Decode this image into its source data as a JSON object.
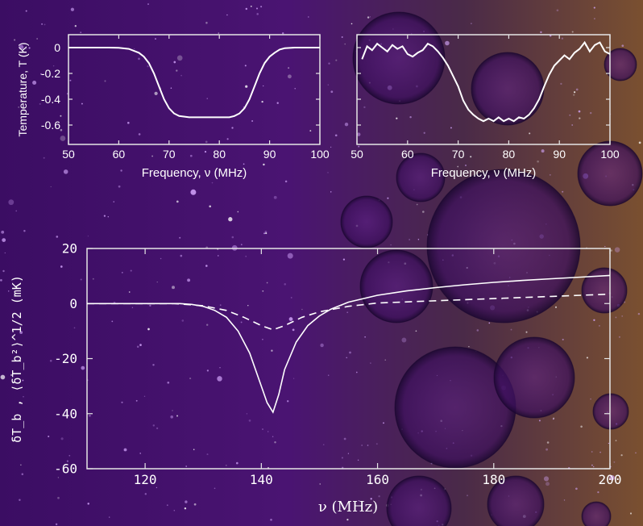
{
  "chart_data": [
    {
      "type": "line",
      "xlabel": "Frequency, ν (MHz)",
      "ylabel": "Temperature, T (K)",
      "xlim": [
        50,
        100
      ],
      "ylim": [
        -0.75,
        0.1
      ],
      "xticks": [
        "50",
        "60",
        "70",
        "80",
        "90",
        "100"
      ],
      "yticks": [
        "0",
        "-0.2",
        "-0.4",
        "-0.6"
      ],
      "series": [
        {
          "values": [
            [
              50,
              0
            ],
            [
              52,
              0
            ],
            [
              54,
              0
            ],
            [
              56,
              0
            ],
            [
              58,
              0
            ],
            [
              60,
              -0.002
            ],
            [
              62,
              -0.01
            ],
            [
              64,
              -0.04
            ],
            [
              65,
              -0.07
            ],
            [
              66,
              -0.12
            ],
            [
              67,
              -0.2
            ],
            [
              68,
              -0.3
            ],
            [
              69,
              -0.4
            ],
            [
              70,
              -0.47
            ],
            [
              71,
              -0.51
            ],
            [
              72,
              -0.53
            ],
            [
              74,
              -0.54
            ],
            [
              76,
              -0.54
            ],
            [
              78,
              -0.54
            ],
            [
              80,
              -0.54
            ],
            [
              82,
              -0.54
            ],
            [
              83,
              -0.53
            ],
            [
              84,
              -0.51
            ],
            [
              85,
              -0.47
            ],
            [
              86,
              -0.4
            ],
            [
              87,
              -0.3
            ],
            [
              88,
              -0.2
            ],
            [
              89,
              -0.12
            ],
            [
              90,
              -0.07
            ],
            [
              91,
              -0.04
            ],
            [
              92,
              -0.015
            ],
            [
              93,
              -0.005
            ],
            [
              95,
              0
            ],
            [
              97,
              0
            ],
            [
              100,
              0
            ]
          ]
        }
      ]
    },
    {
      "type": "line",
      "xlabel": "Frequency, ν (MHz)",
      "xlim": [
        50,
        100
      ],
      "ylim": [
        -0.75,
        0.1
      ],
      "xticks": [
        "50",
        "60",
        "70",
        "80",
        "90",
        "100"
      ],
      "series": [
        {
          "values": [
            [
              51,
              -0.09
            ],
            [
              52,
              0.01
            ],
            [
              53,
              -0.02
            ],
            [
              54,
              0.03
            ],
            [
              55,
              0.0
            ],
            [
              56,
              -0.03
            ],
            [
              57,
              0.02
            ],
            [
              58,
              -0.01
            ],
            [
              59,
              0.01
            ],
            [
              60,
              -0.05
            ],
            [
              61,
              -0.07
            ],
            [
              62,
              -0.04
            ],
            [
              63,
              -0.02
            ],
            [
              64,
              0.03
            ],
            [
              65,
              0.01
            ],
            [
              66,
              -0.03
            ],
            [
              67,
              -0.08
            ],
            [
              68,
              -0.14
            ],
            [
              69,
              -0.22
            ],
            [
              70,
              -0.3
            ],
            [
              71,
              -0.41
            ],
            [
              72,
              -0.48
            ],
            [
              73,
              -0.52
            ],
            [
              74,
              -0.55
            ],
            [
              75,
              -0.57
            ],
            [
              76,
              -0.55
            ],
            [
              77,
              -0.57
            ],
            [
              78,
              -0.54
            ],
            [
              79,
              -0.57
            ],
            [
              80,
              -0.55
            ],
            [
              81,
              -0.57
            ],
            [
              82,
              -0.54
            ],
            [
              83,
              -0.55
            ],
            [
              84,
              -0.52
            ],
            [
              85,
              -0.47
            ],
            [
              86,
              -0.4
            ],
            [
              87,
              -0.3
            ],
            [
              88,
              -0.21
            ],
            [
              89,
              -0.14
            ],
            [
              90,
              -0.1
            ],
            [
              91,
              -0.06
            ],
            [
              92,
              -0.09
            ],
            [
              93,
              -0.04
            ],
            [
              94,
              -0.01
            ],
            [
              95,
              0.04
            ],
            [
              96,
              -0.03
            ],
            [
              97,
              0.02
            ],
            [
              98,
              0.04
            ],
            [
              99,
              -0.03
            ],
            [
              100,
              -0.05
            ]
          ]
        }
      ]
    },
    {
      "type": "line",
      "xlabel": "ν (MHz)",
      "ylabel": "δT_b , ⟨δT_b²⟩^1/2 (mK)",
      "xlim": [
        110,
        200
      ],
      "ylim": [
        -60,
        20
      ],
      "xticks": [
        "120",
        "140",
        "160",
        "180",
        "200"
      ],
      "yticks": [
        "20",
        "0",
        "-20",
        "-40",
        "-60"
      ],
      "series": [
        {
          "style": "solid",
          "values": [
            [
              110,
              0
            ],
            [
              120,
              0
            ],
            [
              126,
              0
            ],
            [
              128,
              -0.3
            ],
            [
              130,
              -1
            ],
            [
              132,
              -2.5
            ],
            [
              134,
              -5
            ],
            [
              136,
              -10
            ],
            [
              138,
              -18
            ],
            [
              140,
              -30
            ],
            [
              141,
              -36
            ],
            [
              142,
              -39.5
            ],
            [
              143,
              -33
            ],
            [
              144,
              -24
            ],
            [
              146,
              -14
            ],
            [
              148,
              -8
            ],
            [
              150,
              -4.5
            ],
            [
              152,
              -2
            ],
            [
              155,
              0.5
            ],
            [
              160,
              3
            ],
            [
              165,
              4.6
            ],
            [
              170,
              5.8
            ],
            [
              175,
              6.8
            ],
            [
              180,
              7.7
            ],
            [
              185,
              8.4
            ],
            [
              190,
              9
            ],
            [
              195,
              9.6
            ],
            [
              200,
              10.2
            ]
          ]
        },
        {
          "style": "dashed",
          "values": [
            [
              110,
              0
            ],
            [
              125,
              0
            ],
            [
              130,
              -0.8
            ],
            [
              134,
              -2.5
            ],
            [
              137,
              -5
            ],
            [
              140,
              -8
            ],
            [
              142,
              -9.5
            ],
            [
              144,
              -8
            ],
            [
              147,
              -5
            ],
            [
              150,
              -3
            ],
            [
              155,
              -1
            ],
            [
              160,
              0.2
            ],
            [
              170,
              1
            ],
            [
              180,
              1.8
            ],
            [
              190,
              2.6
            ],
            [
              200,
              3.4
            ]
          ]
        }
      ]
    }
  ],
  "colors": {
    "line": "#ffffff",
    "axis": "#e6e6e6",
    "background": "#3a1060"
  }
}
